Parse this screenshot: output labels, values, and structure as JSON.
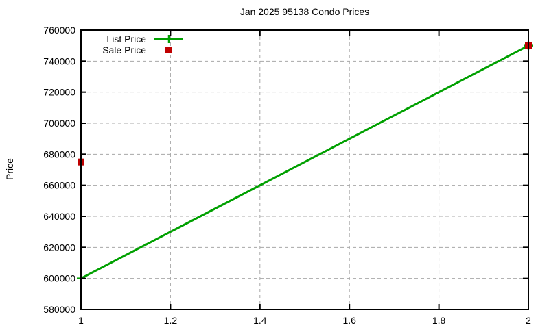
{
  "chart_data": {
    "type": "line",
    "title": "Jan 2025 95138 Condo Prices",
    "xlabel": "",
    "ylabel": "Price",
    "xlim": [
      1,
      2
    ],
    "ylim": [
      580000,
      760000
    ],
    "xticks": {
      "values": [
        1,
        1.2,
        1.4,
        1.6,
        1.8,
        2
      ],
      "labels": [
        "1",
        "1.2",
        "1.4",
        "1.6",
        "1.8",
        "2"
      ]
    },
    "yticks": {
      "values": [
        580000,
        600000,
        620000,
        640000,
        660000,
        680000,
        700000,
        720000,
        740000,
        760000
      ],
      "labels": [
        "580000",
        "600000",
        "620000",
        "640000",
        "660000",
        "680000",
        "700000",
        "720000",
        "740000",
        "760000"
      ]
    },
    "grid": "dashed",
    "legend_position": "top-left-inside",
    "series": [
      {
        "name": "List Price",
        "type": "linespoints",
        "marker": "plus",
        "color": "#00a000",
        "points": [
          {
            "x": 1,
            "y": 600000
          },
          {
            "x": 2,
            "y": 750000
          }
        ]
      },
      {
        "name": "Sale Price",
        "type": "points",
        "marker": "square",
        "color": "#c00000",
        "points": [
          {
            "x": 1,
            "y": 675000
          },
          {
            "x": 2,
            "y": 750000
          }
        ]
      }
    ],
    "colors": {
      "grid": "#a8a8a8",
      "border": "#000000",
      "text": "#000000",
      "background": "#ffffff"
    }
  }
}
